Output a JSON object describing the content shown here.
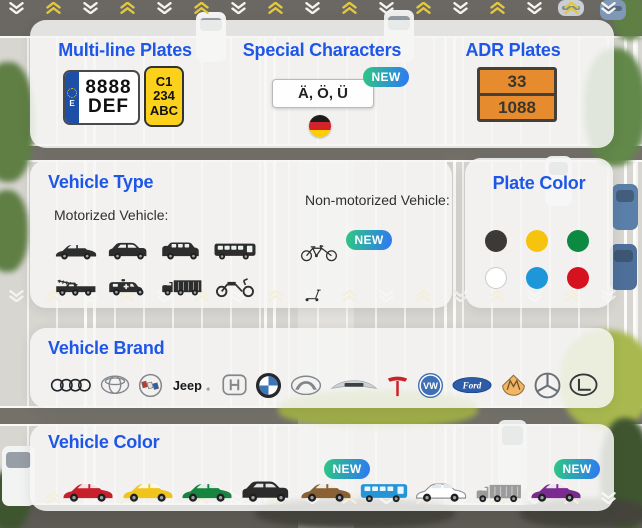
{
  "cards": {
    "multiline": {
      "title": "Multi-line Plates",
      "euro_plate": {
        "country_letter": "E",
        "line1": "8888",
        "line2": "DEF"
      },
      "yellow_plate": {
        "line1": "C1",
        "line2": "234",
        "line3": "ABC"
      }
    },
    "special": {
      "title": "Special Characters",
      "plate_text": "Ä, Ö, Ü",
      "badge": "NEW",
      "flag_icon": "germany-flag"
    },
    "adr": {
      "title": "ADR Plates",
      "code_top": "33",
      "code_bottom": "1088"
    },
    "vehicle_type": {
      "title": "Vehicle Type",
      "motorized_label": "Motorized Vehicle:",
      "non_motorized_label": "Non-motorized Vehicle:",
      "badge": "NEW",
      "motorized_icons": [
        "sedan",
        "suv",
        "van",
        "bus",
        "fire-truck",
        "ambulance",
        "truck",
        "motorcycle"
      ],
      "non_motorized_icons": [
        "bicycle",
        "kick-scooter"
      ]
    },
    "plate_color": {
      "title": "Plate Color",
      "colors": [
        {
          "name": "black",
          "hex": "#3d3936"
        },
        {
          "name": "yellow",
          "hex": "#f6c40e"
        },
        {
          "name": "green",
          "hex": "#0d8a41"
        },
        {
          "name": "white",
          "hex": "#ffffff"
        },
        {
          "name": "blue",
          "hex": "#1e96da"
        },
        {
          "name": "red",
          "hex": "#d6121f"
        }
      ]
    },
    "vehicle_brand": {
      "title": "Vehicle Brand",
      "brands": [
        "Audi",
        "Toyota",
        "Buick",
        "Jeep",
        "Honda",
        "BMW",
        "Mazda",
        "Aston Martin",
        "Tesla",
        "Volkswagen",
        "Ford",
        "Maybach",
        "Mercedes-Benz",
        "Lexus"
      ]
    },
    "vehicle_color": {
      "title": "Vehicle Color",
      "badge": "NEW",
      "vehicles": [
        {
          "type": "sedan",
          "color_name": "red",
          "hex": "#c7202d",
          "badge": ""
        },
        {
          "type": "sedan",
          "color_name": "yellow",
          "hex": "#f0c41c",
          "badge": ""
        },
        {
          "type": "sedan",
          "color_name": "green",
          "hex": "#17843f",
          "badge": ""
        },
        {
          "type": "suv",
          "color_name": "black",
          "hex": "#2b2b2b",
          "badge": ""
        },
        {
          "type": "sedan",
          "color_name": "brown",
          "hex": "#8a6134",
          "badge": "NEW"
        },
        {
          "type": "bus",
          "color_name": "blue",
          "hex": "#2595d8",
          "badge": ""
        },
        {
          "type": "sedan",
          "color_name": "white",
          "hex": "#ffffff",
          "badge": ""
        },
        {
          "type": "truck",
          "color_name": "gray",
          "hex": "#9b9b9b",
          "badge": ""
        },
        {
          "type": "sedan",
          "color_name": "purple",
          "hex": "#7b2b8f",
          "badge": "NEW"
        }
      ]
    }
  }
}
